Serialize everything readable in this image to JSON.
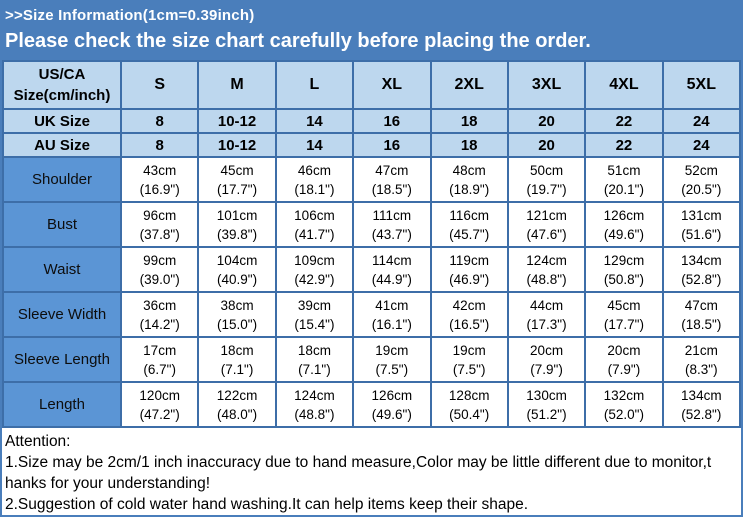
{
  "banner": {
    "title": ">>Size Information(1cm=0.39inch)",
    "subtitle": "Please check the size chart carefully before placing the order."
  },
  "table": {
    "corner_header": [
      "US/CA",
      "Size(cm/inch)"
    ],
    "size_columns": [
      "S",
      "M",
      "L",
      "XL",
      "2XL",
      "3XL",
      "4XL",
      "5XL"
    ],
    "size_rows": [
      {
        "label": "UK Size",
        "values": [
          "8",
          "10-12",
          "14",
          "16",
          "18",
          "20",
          "22",
          "24"
        ]
      },
      {
        "label": "AU Size",
        "values": [
          "8",
          "10-12",
          "14",
          "16",
          "18",
          "20",
          "22",
          "24"
        ]
      }
    ],
    "measurement_rows": [
      {
        "label": "Shoulder",
        "cm": [
          "43cm",
          "45cm",
          "46cm",
          "47cm",
          "48cm",
          "50cm",
          "51cm",
          "52cm"
        ],
        "inch": [
          "(16.9\")",
          "(17.7\")",
          "(18.1\")",
          "(18.5\")",
          "(18.9\")",
          "(19.7\")",
          "(20.1\")",
          "(20.5\")"
        ]
      },
      {
        "label": "Bust",
        "cm": [
          "96cm",
          "101cm",
          "106cm",
          "111cm",
          "116cm",
          "121cm",
          "126cm",
          "131cm"
        ],
        "inch": [
          "(37.8\")",
          "(39.8\")",
          "(41.7\")",
          "(43.7\")",
          "(45.7\")",
          "(47.6\")",
          "(49.6\")",
          "(51.6\")"
        ]
      },
      {
        "label": "Waist",
        "cm": [
          "99cm",
          "104cm",
          "109cm",
          "114cm",
          "119cm",
          "124cm",
          "129cm",
          "134cm"
        ],
        "inch": [
          "(39.0\")",
          "(40.9\")",
          "(42.9\")",
          "(44.9\")",
          "(46.9\")",
          "(48.8\")",
          "(50.8\")",
          "(52.8\")"
        ]
      },
      {
        "label": "Sleeve Width",
        "cm": [
          "36cm",
          "38cm",
          "39cm",
          "41cm",
          "42cm",
          "44cm",
          "45cm",
          "47cm"
        ],
        "inch": [
          "(14.2\")",
          "(15.0\")",
          "(15.4\")",
          "(16.1\")",
          "(16.5\")",
          "(17.3\")",
          "(17.7\")",
          "(18.5\")"
        ]
      },
      {
        "label": "Sleeve Length",
        "cm": [
          "17cm",
          "18cm",
          "18cm",
          "19cm",
          "19cm",
          "20cm",
          "20cm",
          "21cm"
        ],
        "inch": [
          "(6.7\")",
          "(7.1\")",
          "(7.1\")",
          "(7.5\")",
          "(7.5\")",
          "(7.9\")",
          "(7.9\")",
          "(8.3\")"
        ]
      },
      {
        "label": "Length",
        "cm": [
          "120cm",
          "122cm",
          "124cm",
          "126cm",
          "128cm",
          "130cm",
          "132cm",
          "134cm"
        ],
        "inch": [
          "(47.2\")",
          "(48.0\")",
          "(48.8\")",
          "(49.6\")",
          "(50.4\")",
          "(51.2\")",
          "(52.0\")",
          "(52.8\")"
        ]
      }
    ]
  },
  "attention": {
    "lines": [
      "Attention:",
      "1.Size may be 2cm/1 inch inaccuracy due to hand measure,Color may be little different due to monitor,t",
      "hanks for your understanding!",
      "2.Suggestion of cold water hand washing.It can help items keep their shape."
    ]
  },
  "colors": {
    "banner_blue": "#4a7ebb",
    "label_blue": "#5b95d5",
    "light_blue": "#bdd7ee",
    "grid_border": "#3d6ea8",
    "banner_text": "#ffffff",
    "body_text": "#000000"
  }
}
